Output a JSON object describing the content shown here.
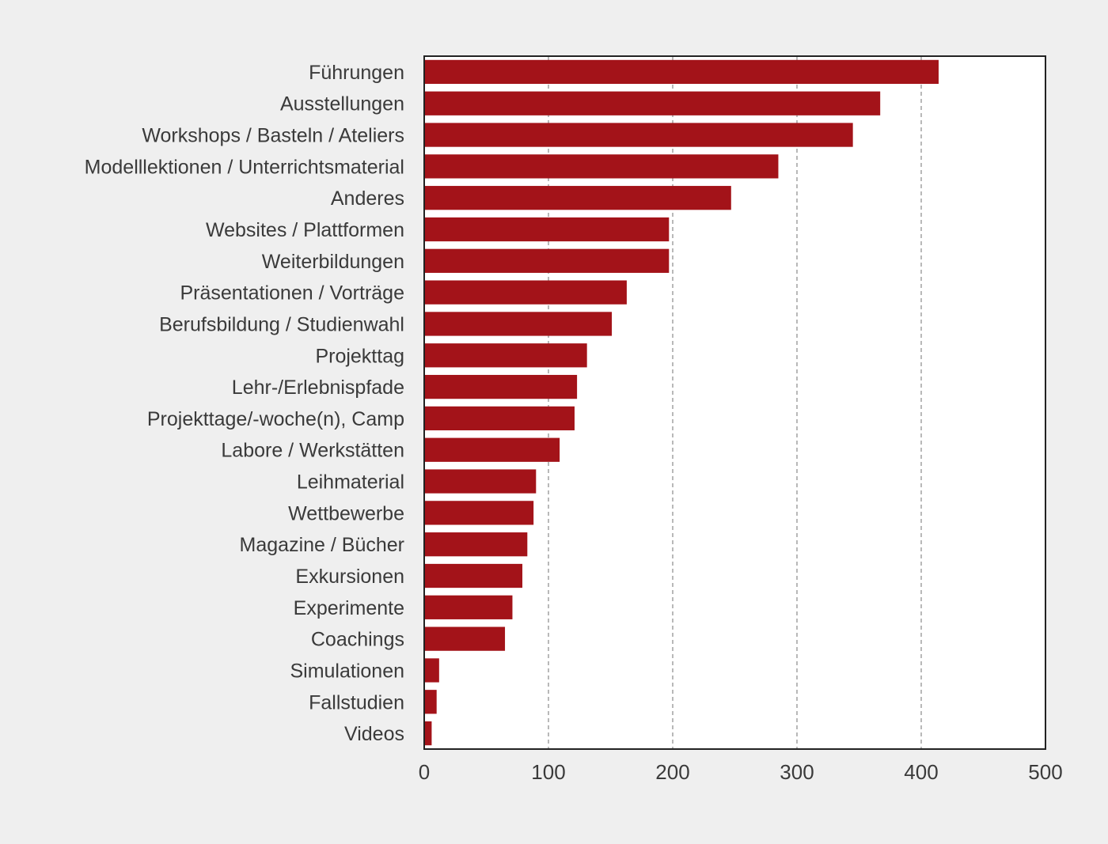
{
  "chart_data": {
    "type": "bar",
    "orientation": "horizontal",
    "title": "",
    "xlabel": "",
    "ylabel": "",
    "xlim": [
      0,
      500
    ],
    "x_ticks": [
      0,
      100,
      200,
      300,
      400,
      500
    ],
    "grid": "vertical dashed",
    "legend": "none",
    "bar_color": "#a31319",
    "categories": [
      "Führungen",
      "Ausstellungen",
      "Workshops / Basteln / Ateliers",
      "Modelllektionen / Unterrichtsmaterial",
      "Anderes",
      "Websites / Plattformen",
      "Weiterbildungen",
      "Präsentationen / Vorträge",
      "Berufsbildung / Studienwahl",
      "Projekttag",
      "Lehr-/Erlebnispfade",
      "Projekttage/-woche(n), Camp",
      "Labore / Werkstätten",
      "Leihmaterial",
      "Wettbewerbe",
      "Magazine / Bücher",
      "Exkursionen",
      "Experimente",
      "Coachings",
      "Simulationen",
      "Fallstudien",
      "Videos"
    ],
    "values": [
      414,
      367,
      345,
      285,
      247,
      197,
      197,
      163,
      151,
      131,
      123,
      121,
      109,
      90,
      88,
      83,
      79,
      71,
      65,
      12,
      10,
      6
    ]
  }
}
